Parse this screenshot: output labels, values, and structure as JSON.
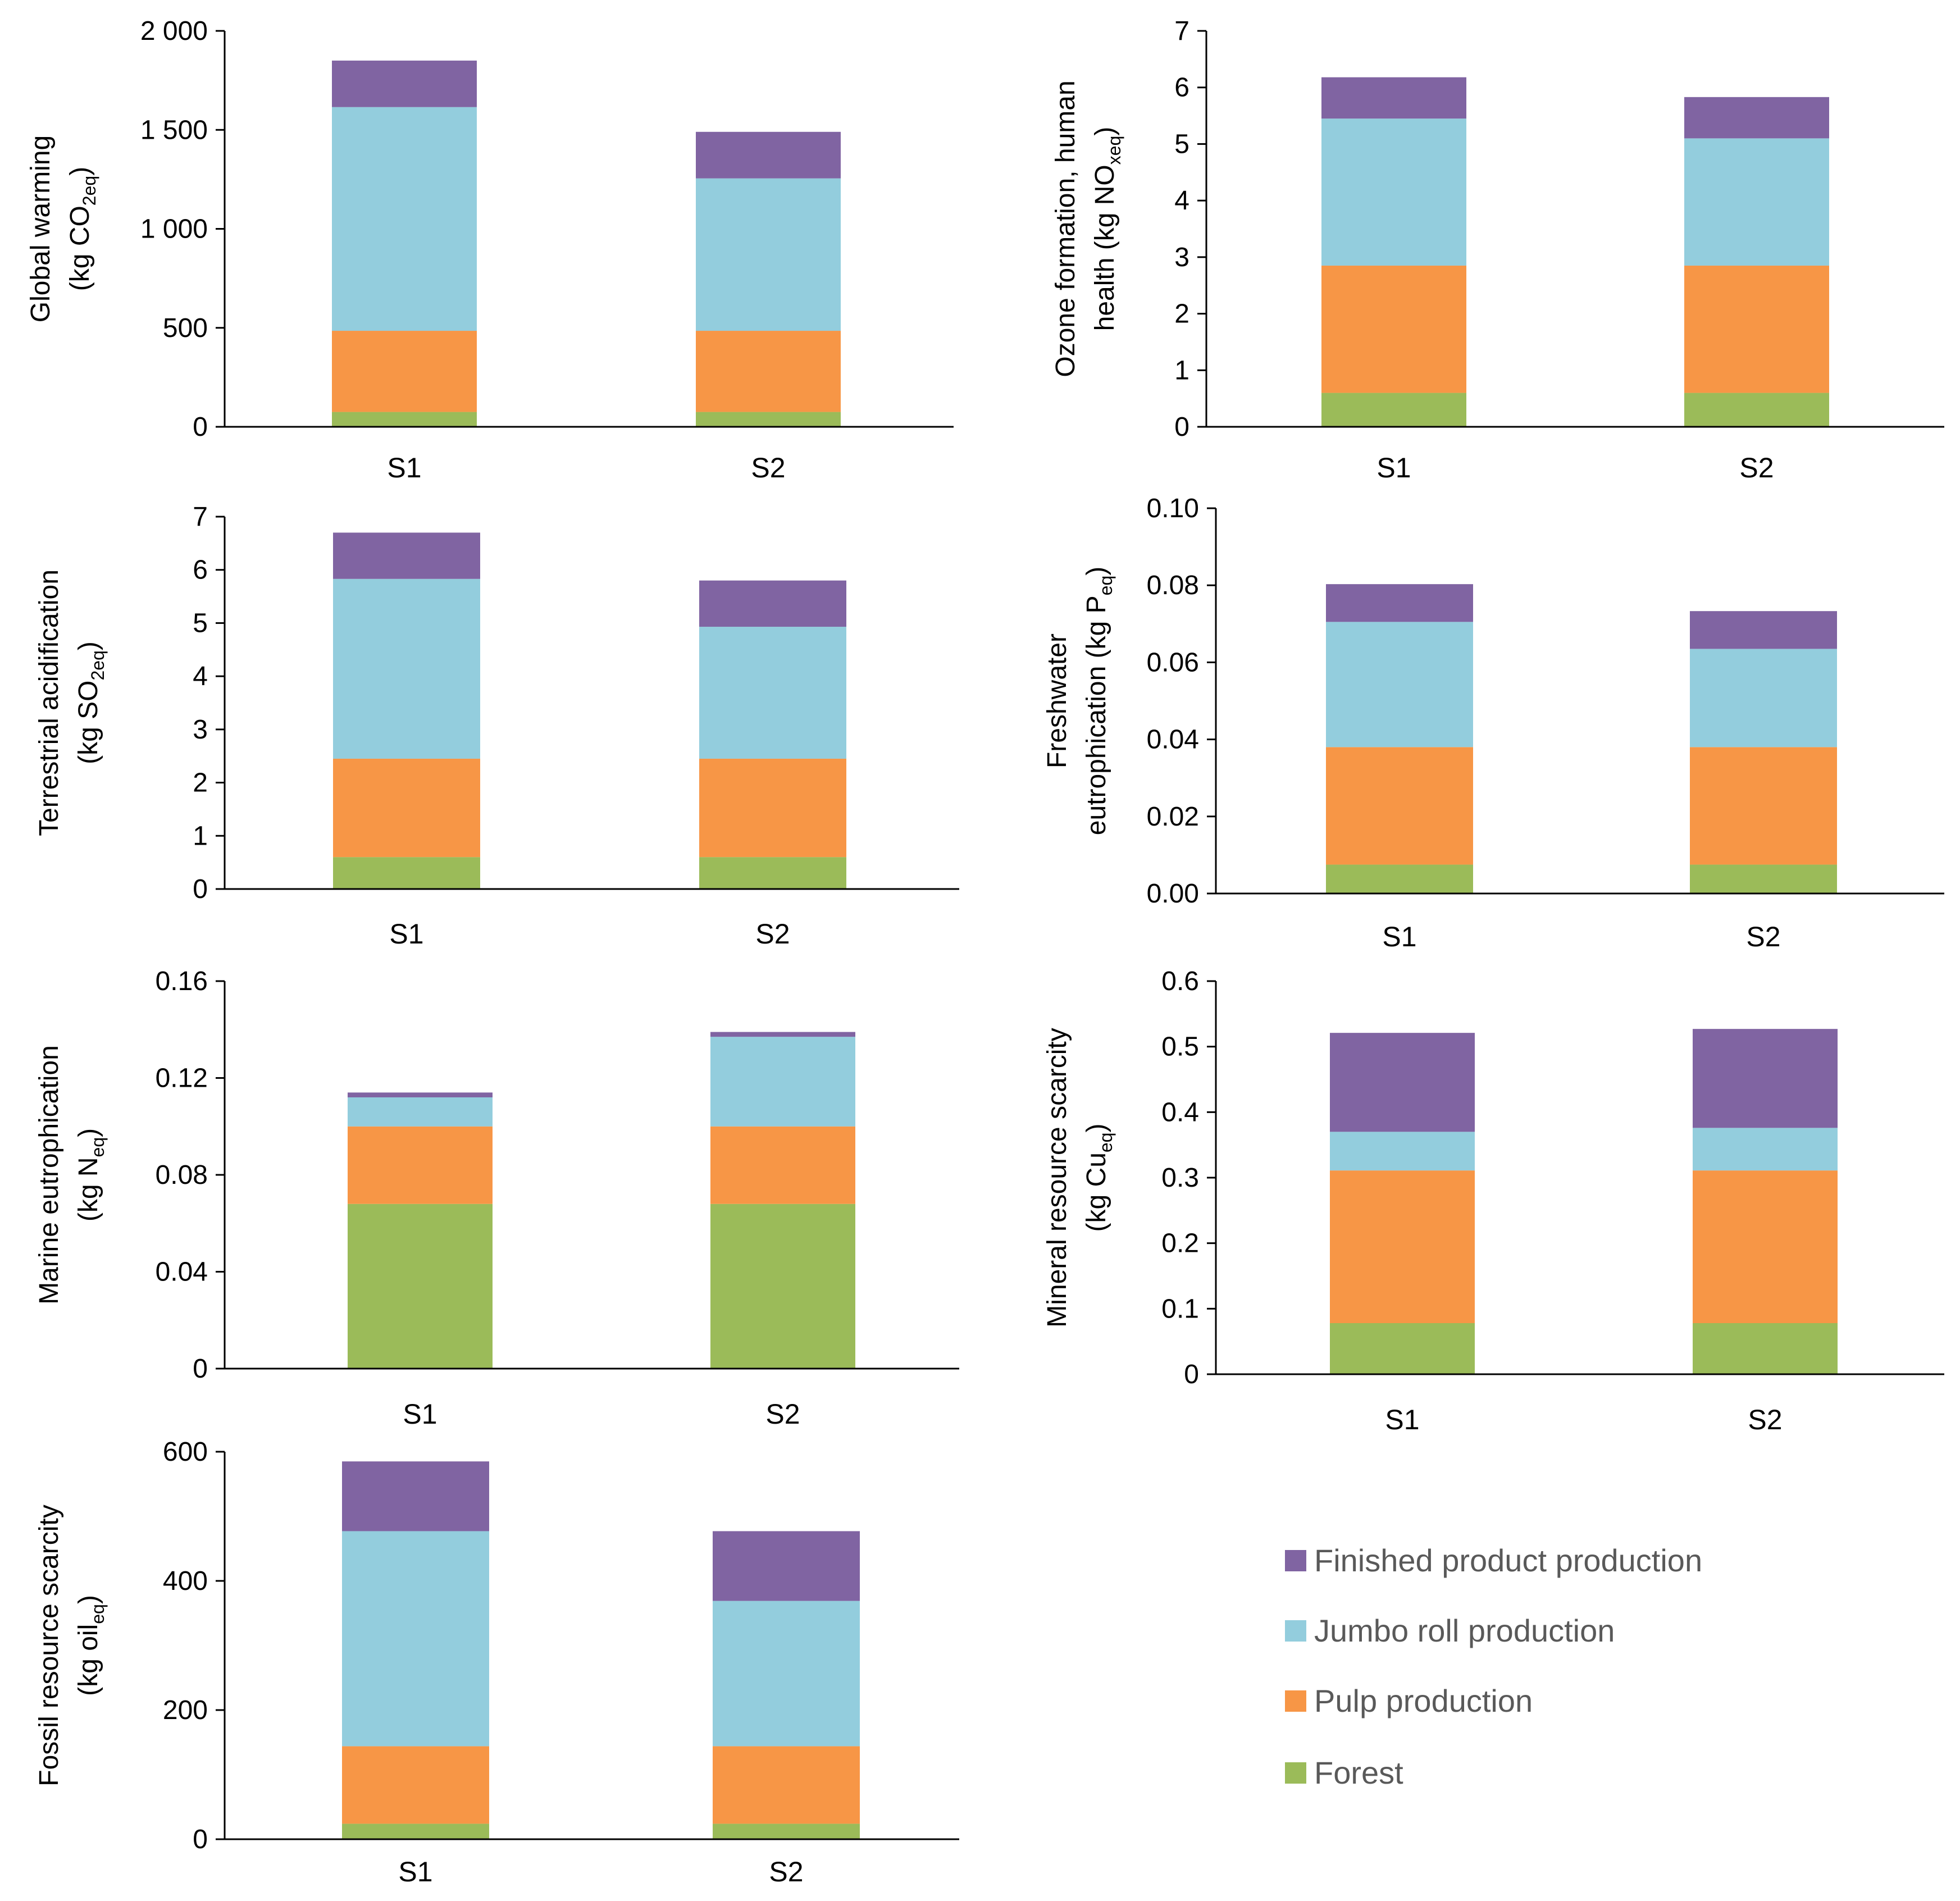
{
  "chart_data": [
    {
      "type": "bar",
      "stacked": true,
      "categories": [
        "S1",
        "S2"
      ],
      "ylim": [
        0,
        2000
      ],
      "ytick_labels": [
        "0",
        "500",
        "1 000",
        "1 500",
        "2 000"
      ],
      "ylabel": {
        "line1": "Global warming",
        "line2_prefix": "(kg CO",
        "line2_sub": "2eq",
        "line2_suffix": ")"
      },
      "series": [
        {
          "name": "Forest",
          "values": [
            75,
            75
          ]
        },
        {
          "name": "Pulp production",
          "values": [
            410,
            410
          ]
        },
        {
          "name": "Jumbo roll production",
          "values": [
            1130,
            770
          ]
        },
        {
          "name": "Finished product production",
          "values": [
            235,
            235
          ]
        }
      ]
    },
    {
      "type": "bar",
      "stacked": true,
      "categories": [
        "S1",
        "S2"
      ],
      "ylim": [
        0,
        7
      ],
      "ytick_labels": [
        "0",
        "1",
        "2",
        "3",
        "4",
        "5",
        "6",
        "7"
      ],
      "ylabel": {
        "line1": "Ozone formation, human",
        "line2_prefix": "health (kg NO",
        "line2_sub": "xeq",
        "line2_suffix": ")"
      },
      "series": [
        {
          "name": "Forest",
          "values": [
            0.6,
            0.6
          ]
        },
        {
          "name": "Pulp production",
          "values": [
            2.25,
            2.25
          ]
        },
        {
          "name": "Jumbo roll production",
          "values": [
            2.6,
            2.25
          ]
        },
        {
          "name": "Finished product production",
          "values": [
            0.73,
            0.73
          ]
        }
      ]
    },
    {
      "type": "bar",
      "stacked": true,
      "categories": [
        "S1",
        "S2"
      ],
      "ylim": [
        0,
        7
      ],
      "ytick_labels": [
        "0",
        "1",
        "2",
        "3",
        "4",
        "5",
        "6",
        "7"
      ],
      "ylabel": {
        "line1": "Terrestrial acidification",
        "line2_prefix": "(kg SO",
        "line2_sub": "2eq",
        "line2_suffix": ")"
      },
      "series": [
        {
          "name": "Forest",
          "values": [
            0.6,
            0.6
          ]
        },
        {
          "name": "Pulp production",
          "values": [
            1.85,
            1.85
          ]
        },
        {
          "name": "Jumbo roll production",
          "values": [
            3.38,
            2.48
          ]
        },
        {
          "name": "Finished product production",
          "values": [
            0.87,
            0.87
          ]
        }
      ]
    },
    {
      "type": "bar",
      "stacked": true,
      "categories": [
        "S1",
        "S2"
      ],
      "ylim": [
        0,
        0.1
      ],
      "ytick_labels": [
        "0.00",
        "0.02",
        "0.04",
        "0.06",
        "0.08",
        "0.10"
      ],
      "ylabel": {
        "line1": "Freshwater",
        "line2_prefix": "eutrophication (kg P",
        "line2_sub": "eq",
        "line2_suffix": ")"
      },
      "series": [
        {
          "name": "Forest",
          "values": [
            0.0075,
            0.0075
          ]
        },
        {
          "name": "Pulp production",
          "values": [
            0.0305,
            0.0305
          ]
        },
        {
          "name": "Jumbo roll production",
          "values": [
            0.0325,
            0.0255
          ]
        },
        {
          "name": "Finished product production",
          "values": [
            0.0098,
            0.0098
          ]
        }
      ]
    },
    {
      "type": "bar",
      "stacked": true,
      "categories": [
        "S1",
        "S2"
      ],
      "ylim": [
        0,
        0.16
      ],
      "ytick_labels": [
        "0",
        "0.04",
        "0.08",
        "0.12",
        "0.16"
      ],
      "ylabel": {
        "line1": "Marine eutrophication",
        "line2_prefix": "(kg N",
        "line2_sub": "eq",
        "line2_suffix": ")"
      },
      "series": [
        {
          "name": "Forest",
          "values": [
            0.068,
            0.068
          ]
        },
        {
          "name": "Pulp production",
          "values": [
            0.032,
            0.032
          ]
        },
        {
          "name": "Jumbo roll production",
          "values": [
            0.012,
            0.037
          ]
        },
        {
          "name": "Finished product production",
          "values": [
            0.002,
            0.002
          ]
        }
      ]
    },
    {
      "type": "bar",
      "stacked": true,
      "categories": [
        "S1",
        "S2"
      ],
      "ylim": [
        0,
        0.6
      ],
      "ytick_labels": [
        "0",
        "0.1",
        "0.2",
        "0.3",
        "0.4",
        "0.5",
        "0.6"
      ],
      "ylabel": {
        "line1": "Mineral resource scarcity",
        "line2_prefix": "(kg Cu",
        "line2_sub": "eq",
        "line2_suffix": ")"
      },
      "series": [
        {
          "name": "Forest",
          "values": [
            0.078,
            0.078
          ]
        },
        {
          "name": "Pulp production",
          "values": [
            0.233,
            0.233
          ]
        },
        {
          "name": "Jumbo roll production",
          "values": [
            0.059,
            0.065
          ]
        },
        {
          "name": "Finished product production",
          "values": [
            0.151,
            0.151
          ]
        }
      ]
    },
    {
      "type": "bar",
      "stacked": true,
      "categories": [
        "S1",
        "S2"
      ],
      "ylim": [
        0,
        600
      ],
      "ytick_labels": [
        "0",
        "200",
        "400",
        "600"
      ],
      "ylabel": {
        "line1": "Fossil resource scarcity",
        "line2_prefix": "(kg oil",
        "line2_sub": "eq",
        "line2_suffix": ")"
      },
      "series": [
        {
          "name": "Forest",
          "values": [
            24,
            24
          ]
        },
        {
          "name": "Pulp production",
          "values": [
            120,
            120
          ]
        },
        {
          "name": "Jumbo roll production",
          "values": [
            333,
            225
          ]
        },
        {
          "name": "Finished product production",
          "values": [
            108,
            108
          ]
        }
      ]
    }
  ],
  "legend": {
    "position": "bottom-right",
    "items": [
      {
        "name": "Finished product production",
        "color": "#8064a2"
      },
      {
        "name": "Jumbo roll production",
        "color": "#93cddd"
      },
      {
        "name": "Pulp production",
        "color": "#f79646"
      },
      {
        "name": "Forest",
        "color": "#9bbb59"
      }
    ]
  },
  "colors": {
    "Forest": "#9bbb59",
    "Pulp production": "#f79646",
    "Jumbo roll production": "#93cddd",
    "Finished product production": "#8064a2"
  }
}
